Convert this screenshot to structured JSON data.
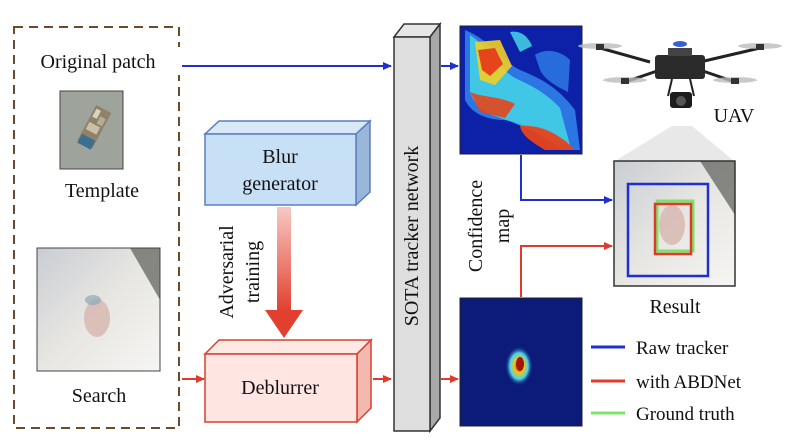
{
  "left_panel": {
    "original_patch": "Original patch",
    "template": "Template",
    "search": "Search"
  },
  "blur_generator": {
    "line1": "Blur",
    "line2": "generator"
  },
  "adversarial_training": {
    "line1": "Adversarial",
    "line2": "training"
  },
  "deblurrer": "Deblurrer",
  "tracker_network": "SOTA tracker network",
  "confidence_map": {
    "line1": "Confidence",
    "line2": "map"
  },
  "uav": "UAV",
  "result": "Result",
  "legend": [
    {
      "label": "Raw tracker",
      "color": "#1f2fd0"
    },
    {
      "label": "with ABDNet",
      "color": "#e03b2a"
    },
    {
      "label": "Ground truth",
      "color": "#7be36b"
    }
  ],
  "colors": {
    "blue_arrow": "#1f2fd0",
    "red_arrow": "#e03b2a",
    "dashed_border": "#6b4a2e",
    "blur_box_border": "#5b7fc0",
    "deblurrer_border": "#d94030"
  }
}
